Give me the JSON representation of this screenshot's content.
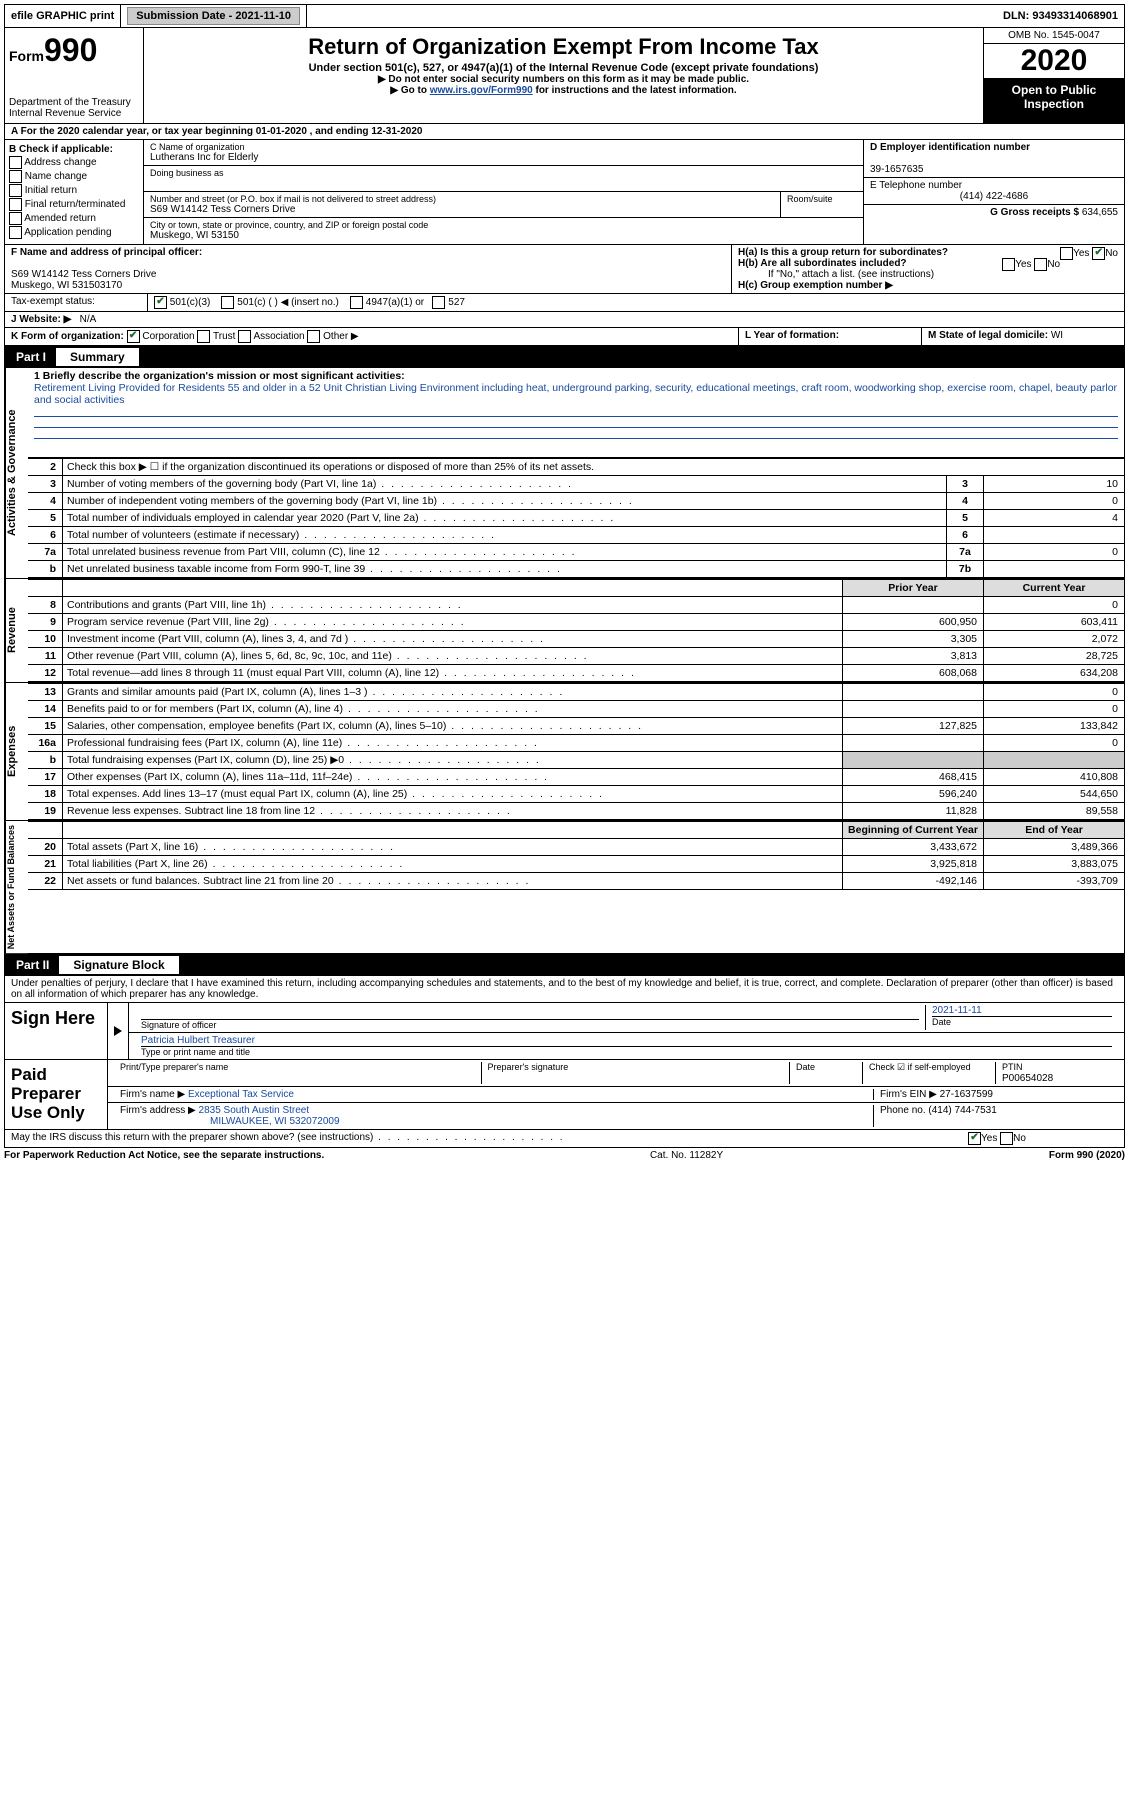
{
  "top": {
    "efile": "efile GRAPHIC print",
    "sub_label": "Submission Date - 2021-11-10",
    "dln": "DLN: 93493314068901"
  },
  "header": {
    "form_prefix": "Form",
    "form_num": "990",
    "dept": "Department of the Treasury\nInternal Revenue Service",
    "title": "Return of Organization Exempt From Income Tax",
    "sub1": "Under section 501(c), 527, or 4947(a)(1) of the Internal Revenue Code (except private foundations)",
    "sub2": "▶ Do not enter social security numbers on this form as it may be made public.",
    "sub3_pre": "▶ Go to ",
    "sub3_link": "www.irs.gov/Form990",
    "sub3_post": " for instructions and the latest information.",
    "omb": "OMB No. 1545-0047",
    "year": "2020",
    "open": "Open to Public Inspection"
  },
  "rowA": "A  For the 2020 calendar year, or tax year beginning 01-01-2020    , and ending 12-31-2020",
  "boxB": {
    "title": "B Check if applicable:",
    "opts": [
      "Address change",
      "Name change",
      "Initial return",
      "Final return/terminated",
      "Amended return",
      "Application pending"
    ]
  },
  "boxC": {
    "label": "C Name of organization",
    "name": "Lutherans Inc for Elderly",
    "dba_label": "Doing business as",
    "addr_label": "Number and street (or P.O. box if mail is not delivered to street address)",
    "room": "Room/suite",
    "addr": "S69 W14142 Tess Corners Drive",
    "city_label": "City or town, state or province, country, and ZIP or foreign postal code",
    "city": "Muskego, WI  53150"
  },
  "boxD": {
    "label": "D Employer identification number",
    "val": "39-1657635"
  },
  "boxE": {
    "label": "E Telephone number",
    "val": "(414) 422-4686"
  },
  "boxG": {
    "label": "G Gross receipts $",
    "val": "634,655"
  },
  "boxF": {
    "label": "F Name and address of principal officer:",
    "addr1": "S69 W14142 Tess Corners Drive",
    "addr2": "Muskego, WI  531503170"
  },
  "boxH": {
    "a": "H(a)  Is this a group return for subordinates?",
    "b": "H(b)  Are all subordinates included?",
    "b_note": "If \"No,\" attach a list. (see instructions)",
    "c": "H(c)  Group exemption number ▶"
  },
  "boxI": {
    "label": "Tax-exempt status:",
    "c3": "501(c)(3)",
    "c": "501(c) (   ) ◀ (insert no.)",
    "a1": "4947(a)(1) or",
    "s527": "527"
  },
  "boxJ": {
    "label": "J  Website: ▶",
    "val": "N/A"
  },
  "boxK": {
    "label": "K Form of organization:",
    "corp": "Corporation",
    "trust": "Trust",
    "assoc": "Association",
    "other": "Other ▶"
  },
  "boxL": "L Year of formation:",
  "boxM": {
    "label": "M State of legal domicile:",
    "val": "WI"
  },
  "part1": {
    "label": "Part I",
    "title": "Summary"
  },
  "mission": {
    "label": "1  Briefly describe the organization's mission or most significant activities:",
    "text": "Retirement Living Provided for Residents 55 and older in a 52 Unit Christian Living Environment including heat, underground parking, security, educational meetings, craft room, woodworking shop, exercise room, chapel, beauty parlor and social activities"
  },
  "sideA": "Activities & Governance",
  "sideR": "Revenue",
  "sideE": "Expenses",
  "sideN": "Net Assets or Fund Balances",
  "lines_gov": [
    {
      "n": "2",
      "t": "Check this box ▶ ☐  if the organization discontinued its operations or disposed of more than 25% of its net assets.",
      "box": "",
      "v": ""
    },
    {
      "n": "3",
      "t": "Number of voting members of the governing body (Part VI, line 1a)",
      "box": "3",
      "v": "10"
    },
    {
      "n": "4",
      "t": "Number of independent voting members of the governing body (Part VI, line 1b)",
      "box": "4",
      "v": "0"
    },
    {
      "n": "5",
      "t": "Total number of individuals employed in calendar year 2020 (Part V, line 2a)",
      "box": "5",
      "v": "4"
    },
    {
      "n": "6",
      "t": "Total number of volunteers (estimate if necessary)",
      "box": "6",
      "v": ""
    },
    {
      "n": "7a",
      "t": "Total unrelated business revenue from Part VIII, column (C), line 12",
      "box": "7a",
      "v": "0"
    },
    {
      "n": "b",
      "t": "Net unrelated business taxable income from Form 990-T, line 39",
      "box": "7b",
      "v": ""
    }
  ],
  "col_prior": "Prior Year",
  "col_curr": "Current Year",
  "lines_rev": [
    {
      "n": "8",
      "t": "Contributions and grants (Part VIII, line 1h)",
      "p": "",
      "c": "0"
    },
    {
      "n": "9",
      "t": "Program service revenue (Part VIII, line 2g)",
      "p": "600,950",
      "c": "603,411"
    },
    {
      "n": "10",
      "t": "Investment income (Part VIII, column (A), lines 3, 4, and 7d )",
      "p": "3,305",
      "c": "2,072"
    },
    {
      "n": "11",
      "t": "Other revenue (Part VIII, column (A), lines 5, 6d, 8c, 9c, 10c, and 11e)",
      "p": "3,813",
      "c": "28,725"
    },
    {
      "n": "12",
      "t": "Total revenue—add lines 8 through 11 (must equal Part VIII, column (A), line 12)",
      "p": "608,068",
      "c": "634,208"
    }
  ],
  "lines_exp": [
    {
      "n": "13",
      "t": "Grants and similar amounts paid (Part IX, column (A), lines 1–3 )",
      "p": "",
      "c": "0"
    },
    {
      "n": "14",
      "t": "Benefits paid to or for members (Part IX, column (A), line 4)",
      "p": "",
      "c": "0"
    },
    {
      "n": "15",
      "t": "Salaries, other compensation, employee benefits (Part IX, column (A), lines 5–10)",
      "p": "127,825",
      "c": "133,842"
    },
    {
      "n": "16a",
      "t": "Professional fundraising fees (Part IX, column (A), line 11e)",
      "p": "",
      "c": "0"
    },
    {
      "n": "b",
      "t": "Total fundraising expenses (Part IX, column (D), line 25) ▶0",
      "p": "shade",
      "c": "shade"
    },
    {
      "n": "17",
      "t": "Other expenses (Part IX, column (A), lines 11a–11d, 11f–24e)",
      "p": "468,415",
      "c": "410,808"
    },
    {
      "n": "18",
      "t": "Total expenses. Add lines 13–17 (must equal Part IX, column (A), line 25)",
      "p": "596,240",
      "c": "544,650"
    },
    {
      "n": "19",
      "t": "Revenue less expenses. Subtract line 18 from line 12",
      "p": "11,828",
      "c": "89,558"
    }
  ],
  "col_beg": "Beginning of Current Year",
  "col_end": "End of Year",
  "lines_net": [
    {
      "n": "20",
      "t": "Total assets (Part X, line 16)",
      "p": "3,433,672",
      "c": "3,489,366"
    },
    {
      "n": "21",
      "t": "Total liabilities (Part X, line 26)",
      "p": "3,925,818",
      "c": "3,883,075"
    },
    {
      "n": "22",
      "t": "Net assets or fund balances. Subtract line 21 from line 20",
      "p": "-492,146",
      "c": "-393,709"
    }
  ],
  "part2": {
    "label": "Part II",
    "title": "Signature Block"
  },
  "penalty": "Under penalties of perjury, I declare that I have examined this return, including accompanying schedules and statements, and to the best of my knowledge and belief, it is true, correct, and complete. Declaration of preparer (other than officer) is based on all information of which preparer has any knowledge.",
  "sign": {
    "here": "Sign Here",
    "sig_label": "Signature of officer",
    "date_label": "Date",
    "date": "2021-11-11",
    "name": "Patricia Hulbert  Treasurer",
    "name_label": "Type or print name and title"
  },
  "paid": {
    "here": "Paid Preparer Use Only",
    "print_label": "Print/Type preparer's name",
    "sig_label": "Preparer's signature",
    "date_label": "Date",
    "check_label": "Check ☑ if self-employed",
    "ptin_label": "PTIN",
    "ptin": "P00654028",
    "firm_label": "Firm's name    ▶",
    "firm": "Exceptional Tax Service",
    "ein_label": "Firm's EIN ▶",
    "ein": "27-1637599",
    "addr_label": "Firm's address ▶",
    "addr1": "2835 South Austin Street",
    "addr2": "MILWAUKEE, WI  532072009",
    "phone_label": "Phone no.",
    "phone": "(414) 744-7531"
  },
  "irs_q": "May the IRS discuss this return with the preparer shown above? (see instructions)",
  "footer": {
    "l": "For Paperwork Reduction Act Notice, see the separate instructions.",
    "m": "Cat. No. 11282Y",
    "r": "Form 990 (2020)"
  }
}
